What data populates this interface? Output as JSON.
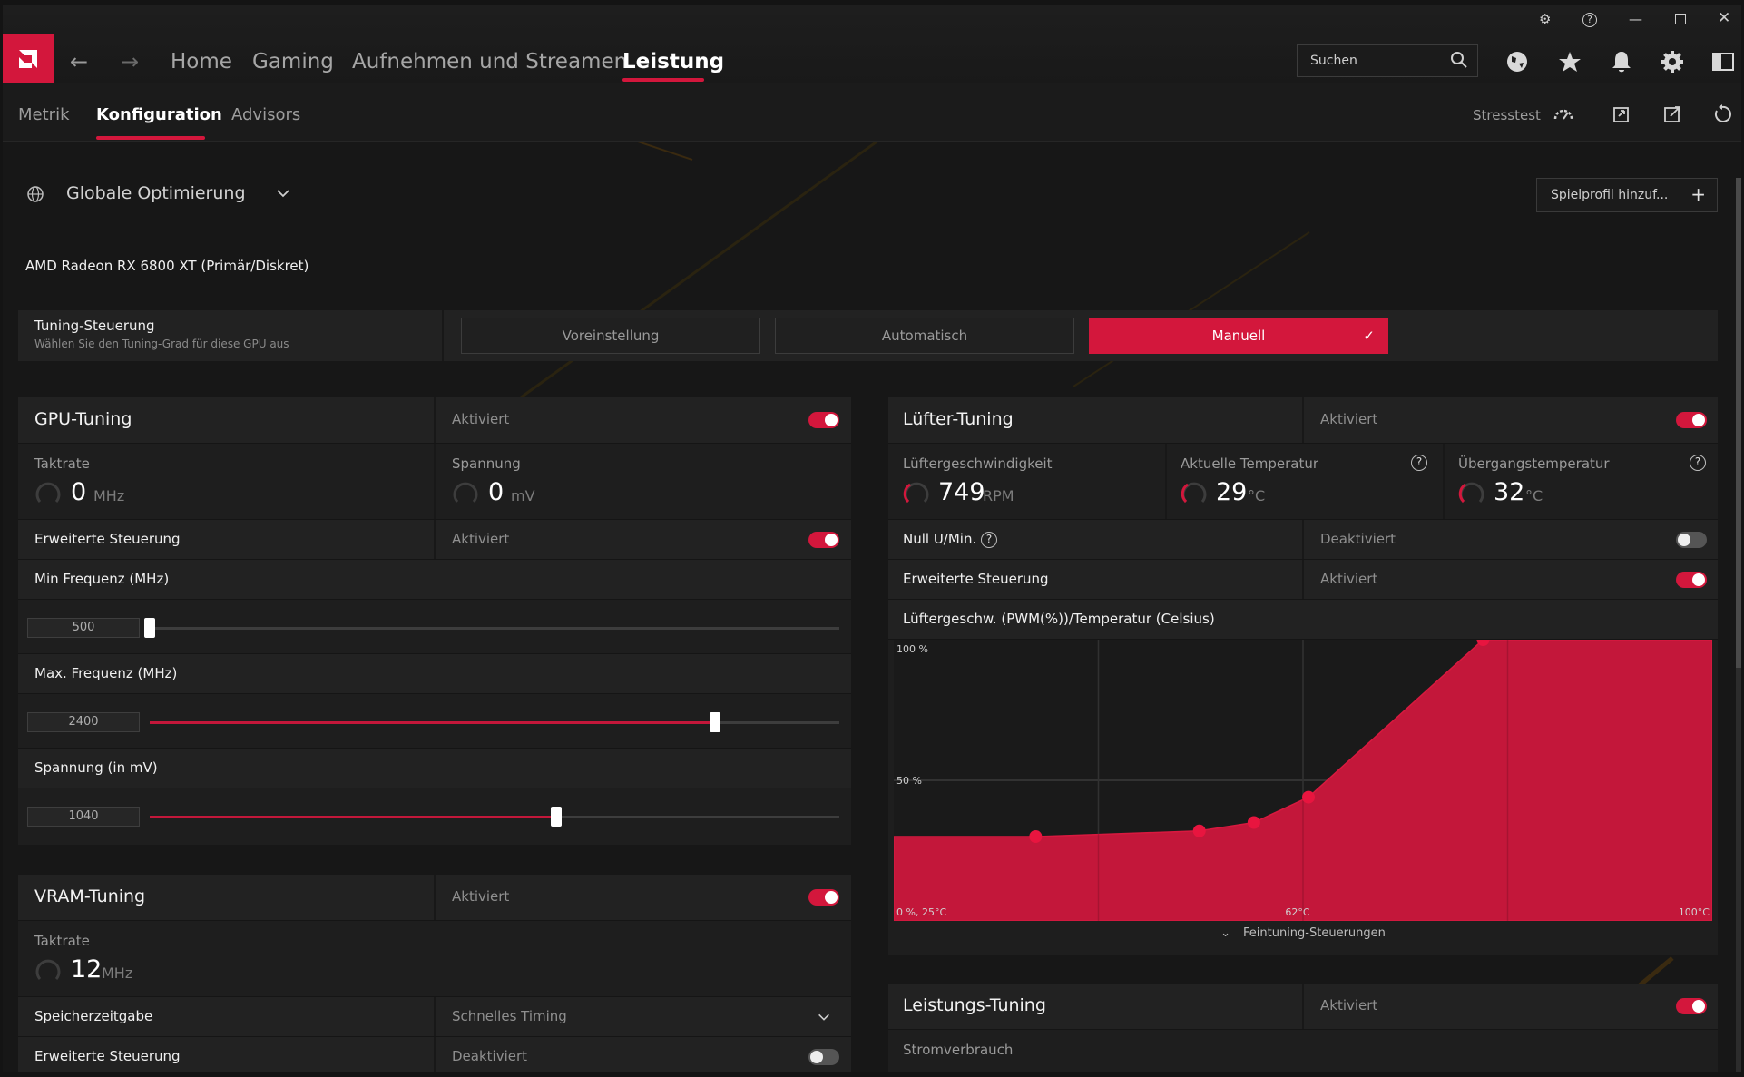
{
  "nav": {
    "home": "Home",
    "gaming": "Gaming",
    "record": "Aufnehmen und Streamen",
    "perf": "Leistung"
  },
  "search": {
    "placeholder": "Suchen"
  },
  "subnav": {
    "metric": "Metrik",
    "config": "Konfiguration",
    "advisors": "Advisors",
    "stress": "Stresstest"
  },
  "profile": {
    "global": "Globale Optimierung",
    "add": "Spielprofil hinzuf..."
  },
  "gpu_name": "AMD Radeon RX 6800 XT (Primär/Diskret)",
  "tuning_control": {
    "title": "Tuning-Steuerung",
    "subtitle": "Wählen Sie den Tuning-Grad für diese GPU aus",
    "options": [
      "Voreinstellung",
      "Automatisch",
      "Manuell"
    ],
    "selected": "Manuell"
  },
  "gpu_tuning": {
    "title": "GPU-Tuning",
    "state": "Aktiviert",
    "clock_label": "Taktrate",
    "clock_value": "0",
    "clock_unit": "MHz",
    "voltage_label": "Spannung",
    "voltage_value": "0",
    "voltage_unit": "mV",
    "adv_label": "Erweiterte Steuerung",
    "adv_state": "Aktiviert",
    "min_freq_label": "Min Frequenz (MHz)",
    "min_freq_value": "500",
    "min_freq_fraction": 0.0,
    "max_freq_label": "Max. Frequenz (MHz)",
    "max_freq_value": "2400",
    "max_freq_fraction": 0.82,
    "volt_label": "Spannung (in mV)",
    "volt_value": "1040",
    "volt_fraction": 0.59
  },
  "vram_tuning": {
    "title": "VRAM-Tuning",
    "state": "Aktiviert",
    "clock_label": "Taktrate",
    "clock_value": "12",
    "clock_unit": "MHz",
    "mem_timing_label": "Speicherzeitgabe",
    "mem_timing_value": "Schnelles Timing",
    "adv_label": "Erweiterte Steuerung",
    "adv_state": "Deaktiviert"
  },
  "fan_tuning": {
    "title": "Lüfter-Tuning",
    "state": "Aktiviert",
    "speed_label": "Lüftergeschwindigkeit",
    "speed_value": "749",
    "speed_unit": "RPM",
    "temp_label": "Aktuelle Temperatur",
    "temp_value": "29",
    "temp_unit": "°C",
    "junction_label": "Übergangstemperatur",
    "junction_value": "32",
    "junction_unit": "°C",
    "zero_rpm_label": "Null U/Min.",
    "zero_rpm_state": "Deaktiviert",
    "adv_label": "Erweiterte Steuerung",
    "adv_state": "Aktiviert",
    "curve_title": "Lüftergeschw. (PWM(%))/Temperatur (Celsius)",
    "fine_tuning": "Feintuning-Steuerungen"
  },
  "chart_data": {
    "type": "area",
    "title": "Lüftergeschw. (PWM(%))/Temperatur (Celsius)",
    "x_unit": "°C",
    "y_unit": "%",
    "xlim": [
      25,
      100
    ],
    "ylim": [
      0,
      100
    ],
    "x": [
      38,
      53,
      58,
      63,
      79
    ],
    "y": [
      30,
      32,
      35,
      44,
      100
    ],
    "y_ticks": [
      "100 %",
      "50 %"
    ],
    "x_tick_labels": [
      "0 %, 25°C",
      "62°C",
      "100°C"
    ],
    "grid": true,
    "colors": {
      "fill": "#c3173a",
      "point": "#e8153f"
    }
  },
  "power_tuning": {
    "title": "Leistungs-Tuning",
    "state": "Aktiviert",
    "power_label": "Stromverbrauch"
  },
  "colors": {
    "accent": "#d3173c",
    "bg": "#171717",
    "panel": "#1e1e1e"
  }
}
